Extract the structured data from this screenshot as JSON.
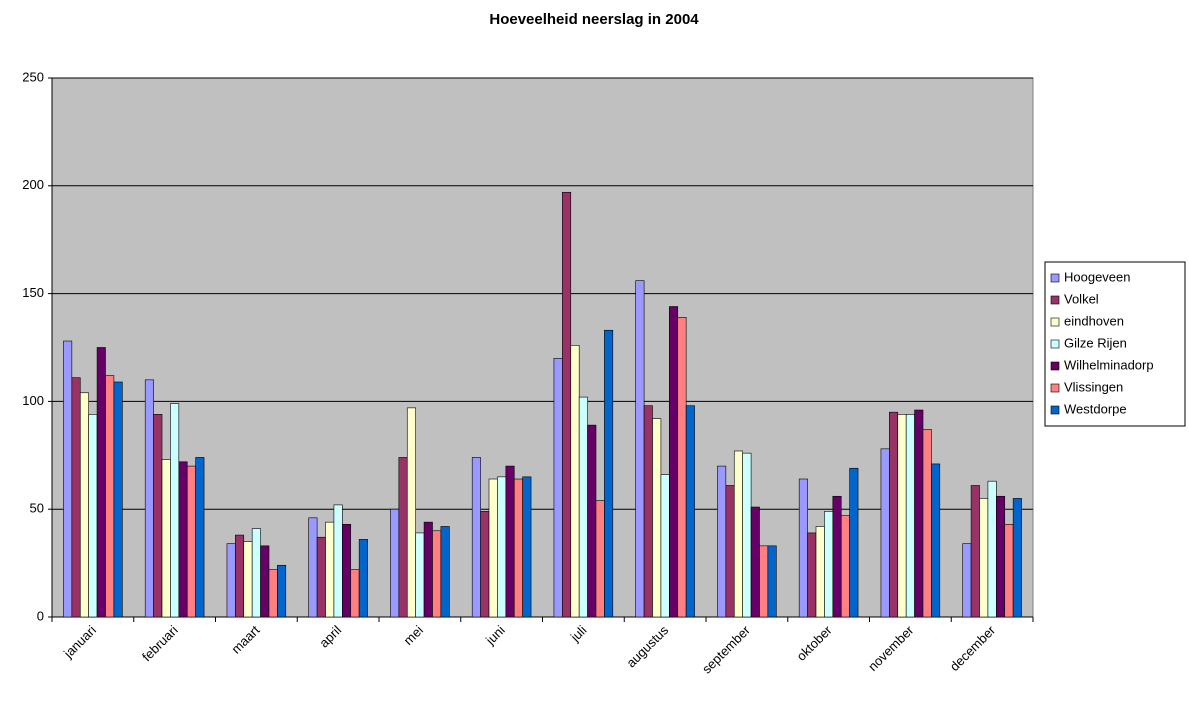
{
  "chart_data": {
    "type": "bar",
    "title": "Hoeveelheid neerslag in 2004",
    "categories": [
      "januari",
      "februari",
      "maart",
      "april",
      "mei",
      "juni",
      "juli",
      "augustus",
      "september",
      "oktober",
      "november",
      "december"
    ],
    "series": [
      {
        "name": "Hoogeveen",
        "color": "#9999FF",
        "values": [
          128,
          110,
          34,
          46,
          50,
          74,
          120,
          156,
          70,
          64,
          78,
          34
        ]
      },
      {
        "name": "Volkel",
        "color": "#993366",
        "values": [
          111,
          94,
          38,
          37,
          74,
          49,
          197,
          98,
          61,
          39,
          95,
          61
        ]
      },
      {
        "name": "eindhoven",
        "color": "#FFFFCC",
        "values": [
          104,
          73,
          35,
          44,
          97,
          64,
          126,
          92,
          77,
          42,
          94,
          55
        ]
      },
      {
        "name": "Gilze Rijen",
        "color": "#CCFFFF",
        "values": [
          94,
          99,
          41,
          52,
          39,
          65,
          102,
          66,
          76,
          49,
          94,
          63
        ]
      },
      {
        "name": "Wilhelminadorp",
        "color": "#660066",
        "values": [
          125,
          72,
          33,
          43,
          44,
          70,
          89,
          144,
          51,
          56,
          96,
          56
        ]
      },
      {
        "name": "Vlissingen",
        "color": "#FF8080",
        "values": [
          112,
          70,
          22,
          22,
          40,
          64,
          54,
          139,
          33,
          47,
          87,
          43
        ]
      },
      {
        "name": "Westdorpe",
        "color": "#0066CC",
        "values": [
          109,
          74,
          24,
          36,
          42,
          65,
          133,
          98,
          33,
          69,
          71,
          55
        ]
      }
    ],
    "ylim": [
      0,
      250
    ],
    "yticks": [
      0,
      50,
      100,
      150,
      200,
      250
    ],
    "grid": true,
    "legend": "right"
  }
}
